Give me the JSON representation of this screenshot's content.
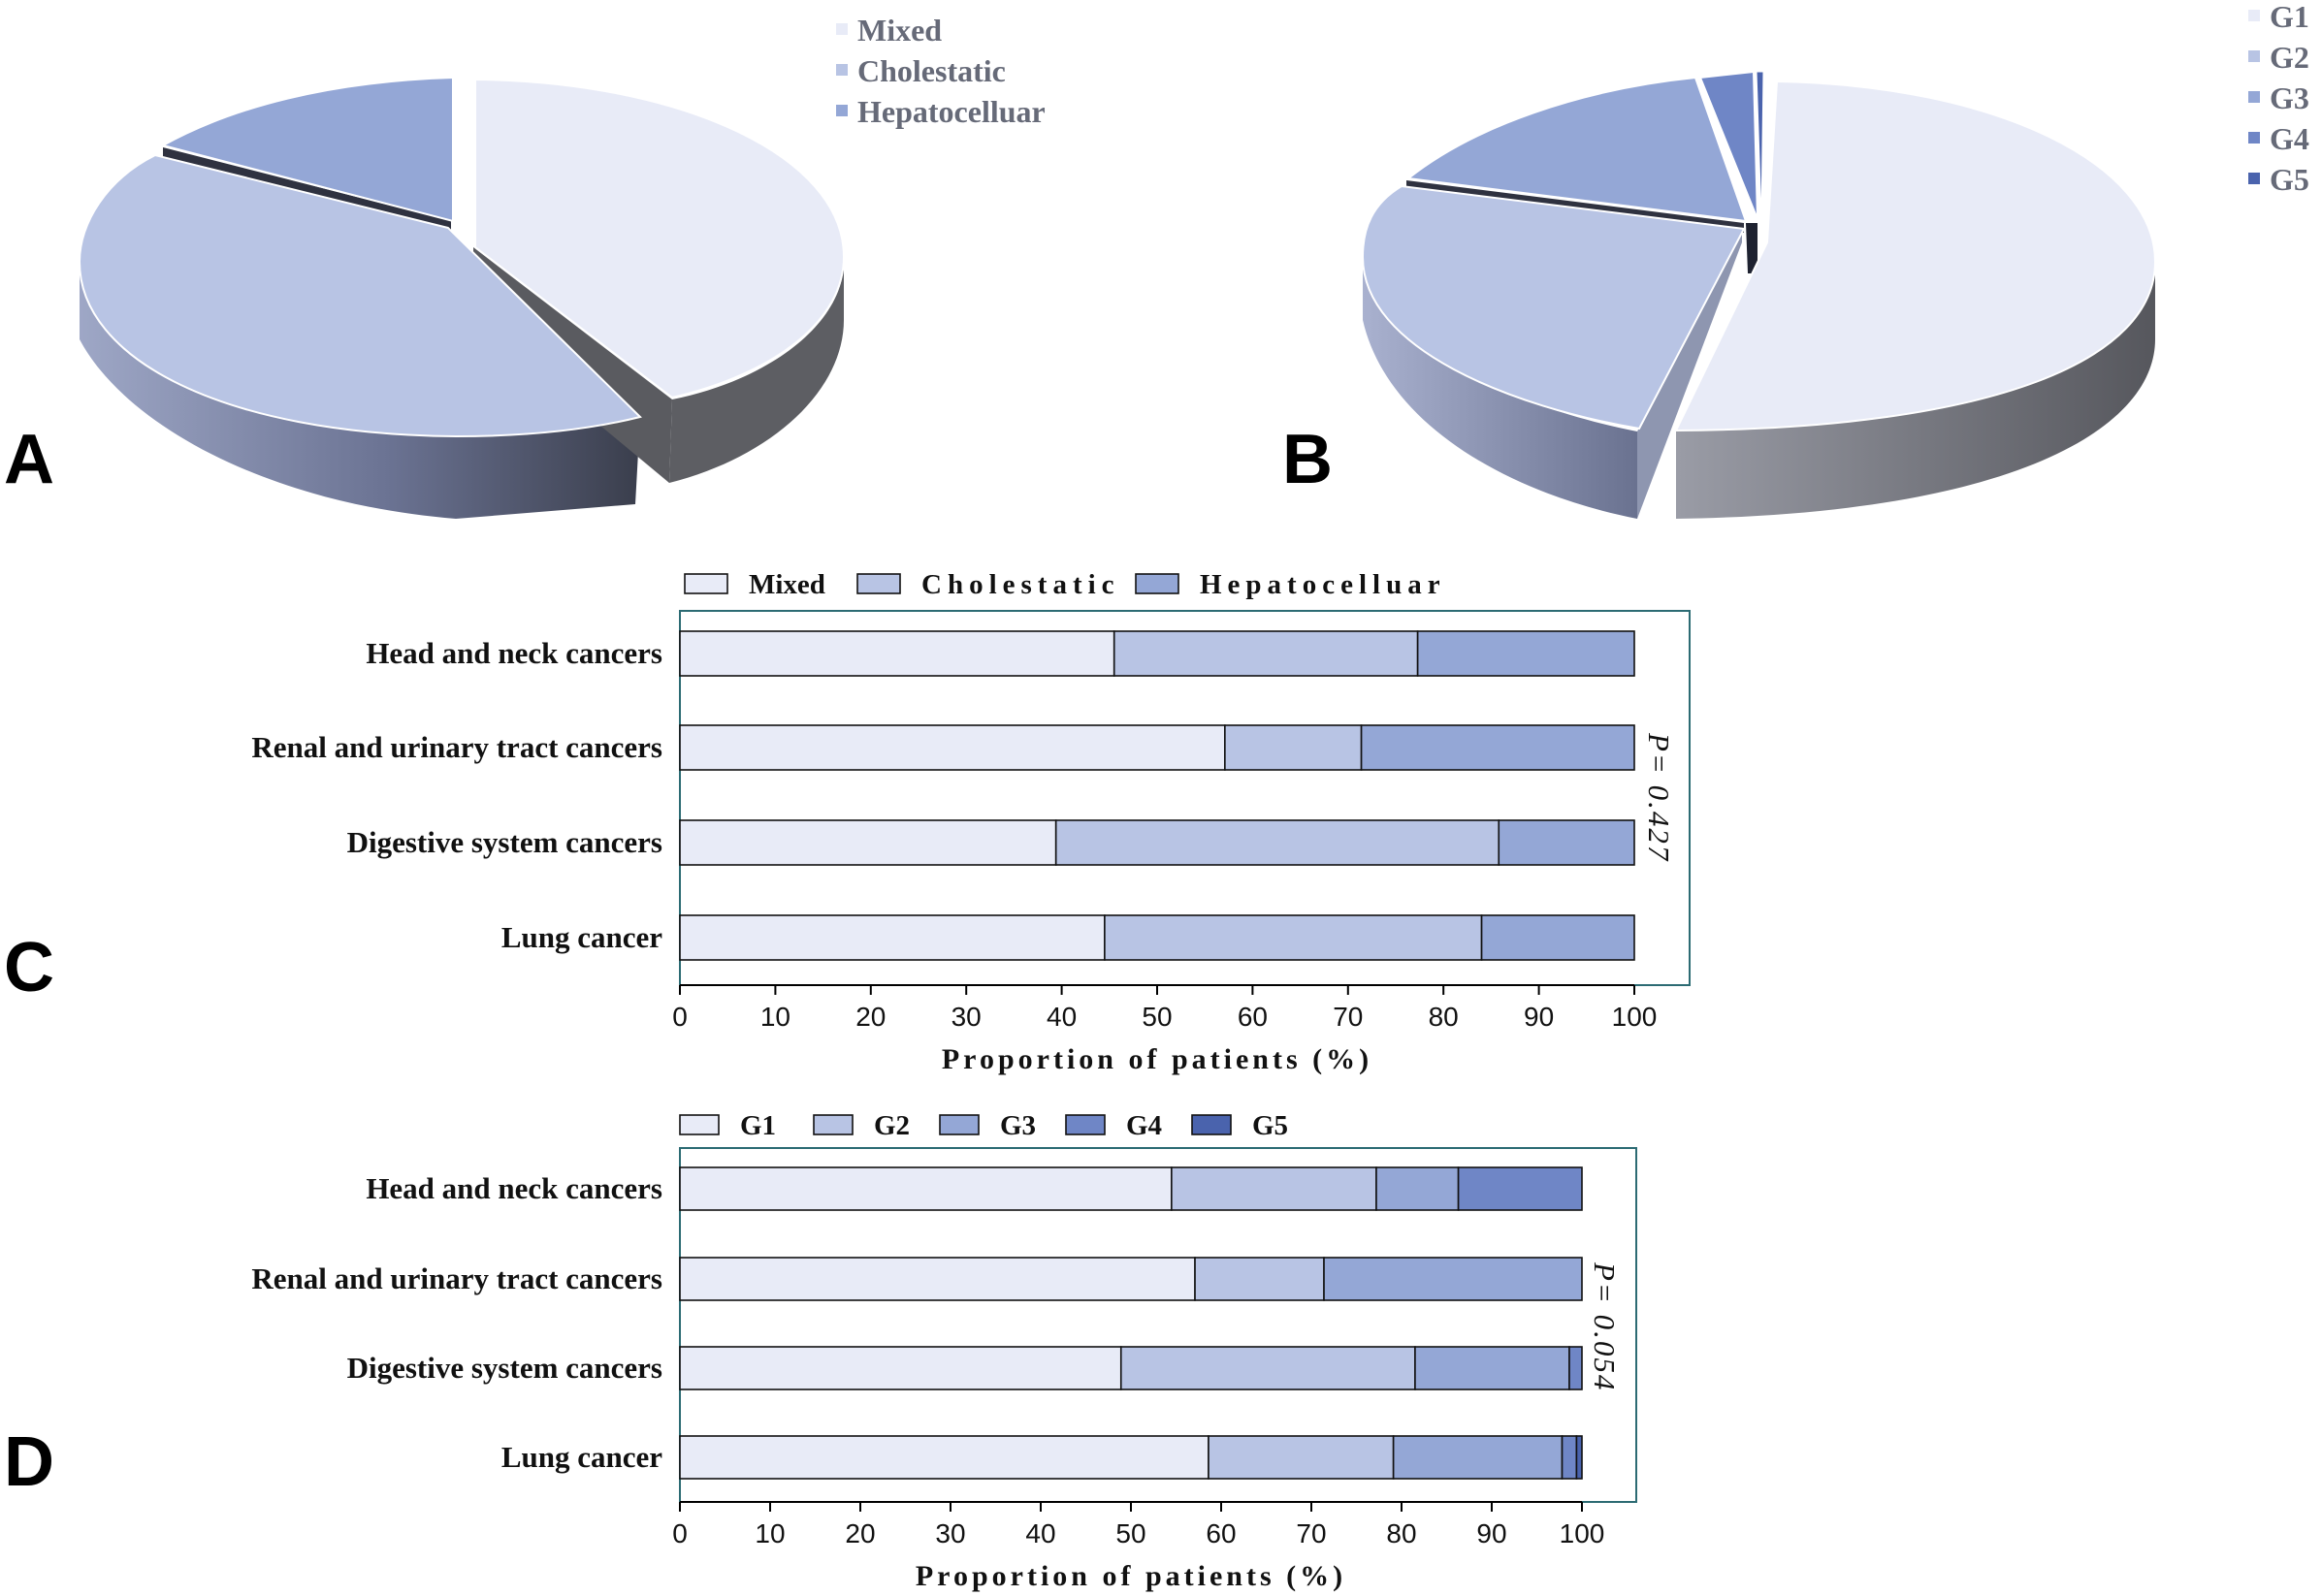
{
  "panels": [
    {
      "letter": "A"
    },
    {
      "letter": "B"
    },
    {
      "letter": "C"
    },
    {
      "letter": "D"
    }
  ],
  "colors": {
    "mixed": "#e8ebf7",
    "cholestatic": "#b8c4e4",
    "hepatocelluar": "#94a7d6",
    "g1": "#e8ebf7",
    "g2": "#b8c4e4",
    "g3": "#94a7d6",
    "g4": "#6f86c6",
    "g5": "#4a63ad",
    "frame": "#2c6b73"
  },
  "chart_data": [
    {
      "id": "A",
      "type": "pie",
      "style": "3d-exploded",
      "labels": [
        "Mixed",
        "Cholestatic",
        "Hepatocelluar"
      ],
      "values": [
        45,
        40,
        15
      ],
      "legend": [
        "Mixed",
        "Cholestatic",
        "Hepatocelluar"
      ],
      "legend_position": "top-right"
    },
    {
      "id": "B",
      "type": "pie",
      "style": "3d-exploded",
      "labels": [
        "G1",
        "G2",
        "G3",
        "G4",
        "G5"
      ],
      "values": [
        54,
        25,
        17,
        3.3,
        0.7
      ],
      "legend": [
        "G1",
        "G2",
        "G3",
        "G4",
        "G5"
      ],
      "legend_position": "top-right"
    },
    {
      "id": "C",
      "type": "bar",
      "orientation": "horizontal",
      "stacked": true,
      "categories": [
        "Head and neck cancers",
        "Renal and urinary tract cancers",
        "Digestive system cancers",
        "Lung cancer"
      ],
      "series": [
        {
          "name": "Mixed",
          "values": [
            45.5,
            57.1,
            39.4,
            44.5
          ]
        },
        {
          "name": "Cholestatic",
          "values": [
            31.8,
            14.3,
            46.4,
            39.5
          ]
        },
        {
          "name": "Hepatocelluar",
          "values": [
            22.7,
            28.6,
            14.2,
            16.0
          ]
        }
      ],
      "xlabel": "Proportion of patients (%)",
      "xlim": [
        0,
        100
      ],
      "xticks": [
        "0",
        "10",
        "20",
        "30",
        "40",
        "50",
        "60",
        "70",
        "80",
        "90",
        "100"
      ],
      "p_value": "P= 0.427",
      "legend_position": "top"
    },
    {
      "id": "D",
      "type": "bar",
      "orientation": "horizontal",
      "stacked": true,
      "categories": [
        "Head and neck cancers",
        "Renal and urinary tract cancers",
        "Digestive system cancers",
        "Lung cancer"
      ],
      "series": [
        {
          "name": "G1",
          "values": [
            54.5,
            57.1,
            48.9,
            58.6
          ]
        },
        {
          "name": "G2",
          "values": [
            22.7,
            14.3,
            32.6,
            20.5
          ]
        },
        {
          "name": "G3",
          "values": [
            9.1,
            28.6,
            17.1,
            18.7
          ]
        },
        {
          "name": "G4",
          "values": [
            13.7,
            0,
            1.4,
            1.6
          ]
        },
        {
          "name": "G5",
          "values": [
            0,
            0,
            0,
            0.6
          ]
        }
      ],
      "xlabel": "Proportion of patients (%)",
      "xlim": [
        0,
        100
      ],
      "xticks": [
        "0",
        "10",
        "20",
        "30",
        "40",
        "50",
        "60",
        "70",
        "80",
        "90",
        "100"
      ],
      "p_value": "P= 0.054",
      "legend_position": "top"
    }
  ]
}
